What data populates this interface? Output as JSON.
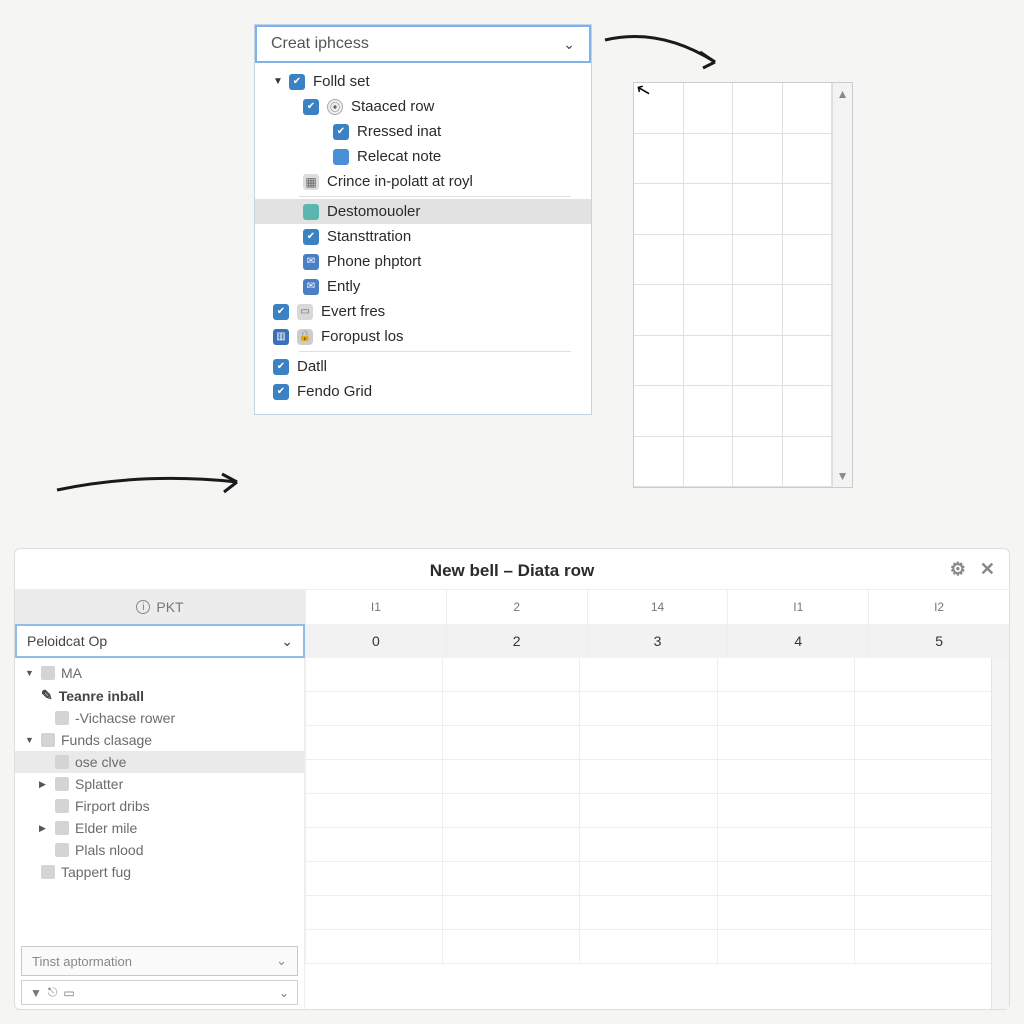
{
  "colors": {
    "page_bg": "#f5f5f4",
    "panel_border": "#dddddd",
    "accent_blue": "#7cb3e8",
    "shield_blue": "#3b82c4",
    "text_primary": "#2a2a2a",
    "text_muted": "#6b6b6b",
    "row_selected": "#e2e2e2"
  },
  "top_dropdown": {
    "header": "Creat iphcess",
    "items": [
      {
        "label": "Folld set",
        "indent": 0,
        "expand": true,
        "icons": [
          "shield"
        ]
      },
      {
        "label": "Staaced row",
        "indent": 1,
        "icons": [
          "shield",
          "person"
        ]
      },
      {
        "label": "Rressed inat",
        "indent": 2,
        "icons": [
          "shield"
        ]
      },
      {
        "label": "Relecat note",
        "indent": 2,
        "icons": [
          "blue-sq"
        ]
      },
      {
        "label": "Crince in-polatt at royl",
        "indent": 1,
        "icons": [
          "grid"
        ],
        "sep_after": true
      },
      {
        "label": "Destomouoler",
        "indent": 1,
        "icons": [
          "teal"
        ],
        "selected": true
      },
      {
        "label": "Stansttration",
        "indent": 1,
        "icons": [
          "shield"
        ]
      },
      {
        "label": "Phone phptort",
        "indent": 1,
        "icons": [
          "envelope"
        ]
      },
      {
        "label": "Ently",
        "indent": 1,
        "icons": [
          "envelope"
        ]
      },
      {
        "label": "Evert fres",
        "indent": 0,
        "icons": [
          "shield",
          "doc-sm"
        ]
      },
      {
        "label": "Foropust los",
        "indent": 0,
        "icons": [
          "cal",
          "lock"
        ],
        "sep_after": true
      },
      {
        "label": "Datll",
        "indent": 0,
        "icons": [
          "shield"
        ]
      },
      {
        "label": "Fendo Grid",
        "indent": 0,
        "icons": [
          "shield"
        ]
      }
    ]
  },
  "mini_grid": {
    "cols": 4,
    "rows": 8
  },
  "bottom_panel": {
    "title": "New bell – Diata row",
    "pkt_label": "PKT",
    "col_headers": [
      "I1",
      "2",
      "14",
      "I1",
      "I2"
    ],
    "number_row": [
      "0",
      "2",
      "3",
      "4",
      "5"
    ],
    "select_value": "Peloidcat Op",
    "side_items": [
      {
        "label": "MA",
        "lv": 0,
        "tri": "down",
        "icon": true
      },
      {
        "label": "Teanre inball",
        "lv": 0,
        "bold": true,
        "pencil": true
      },
      {
        "label": "-Vichacse rower",
        "lv": 1,
        "icon": true
      },
      {
        "label": "Funds clasage",
        "lv": 0,
        "tri": "down",
        "icon": true
      },
      {
        "label": "ose clve",
        "lv": 1,
        "icon": true,
        "selected": true
      },
      {
        "label": "Splatter",
        "lv": 1,
        "tri": "right",
        "icon": true
      },
      {
        "label": "Firport dribs",
        "lv": 1,
        "icon": true
      },
      {
        "label": "Elder mile",
        "lv": 1,
        "tri": "right",
        "icon": true
      },
      {
        "label": "Plals nlood",
        "lv": 1,
        "icon": true
      },
      {
        "label": "Tappert fug",
        "lv": 0,
        "icon": true
      }
    ],
    "secondary_dd": "Tinst aptormation",
    "sheet_rows": 9
  }
}
